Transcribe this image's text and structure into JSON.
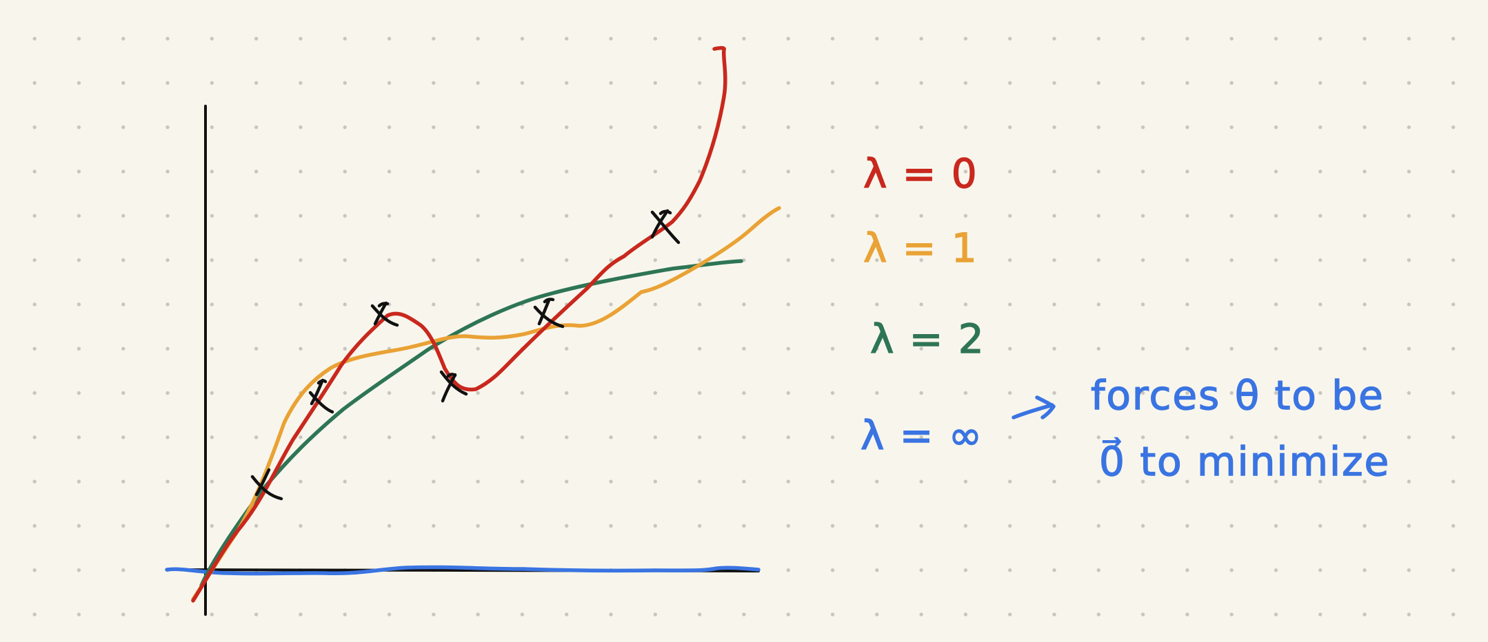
{
  "colors": {
    "background": "#f8f6ec",
    "grid_dots": "#c7c5bd",
    "axis": "#111111",
    "data_points": "#111111",
    "lambda_0": "#c9281e",
    "lambda_1": "#e9a235",
    "lambda_2": "#2e7555",
    "lambda_inf": "#3a74e2"
  },
  "legend": {
    "lambda_0": "λ = 0",
    "lambda_1": "λ = 1",
    "lambda_2": "λ = 2",
    "lambda_inf": "λ = ∞"
  },
  "note": {
    "line1": "forces θ to be",
    "line2": "0⃗ to minimize"
  },
  "diagram": {
    "type": "regularization-curve-fits",
    "data_point_marker": "x",
    "data_point_count": 6,
    "curves": [
      "lambda_0",
      "lambda_1",
      "lambda_2",
      "lambda_inf"
    ]
  }
}
